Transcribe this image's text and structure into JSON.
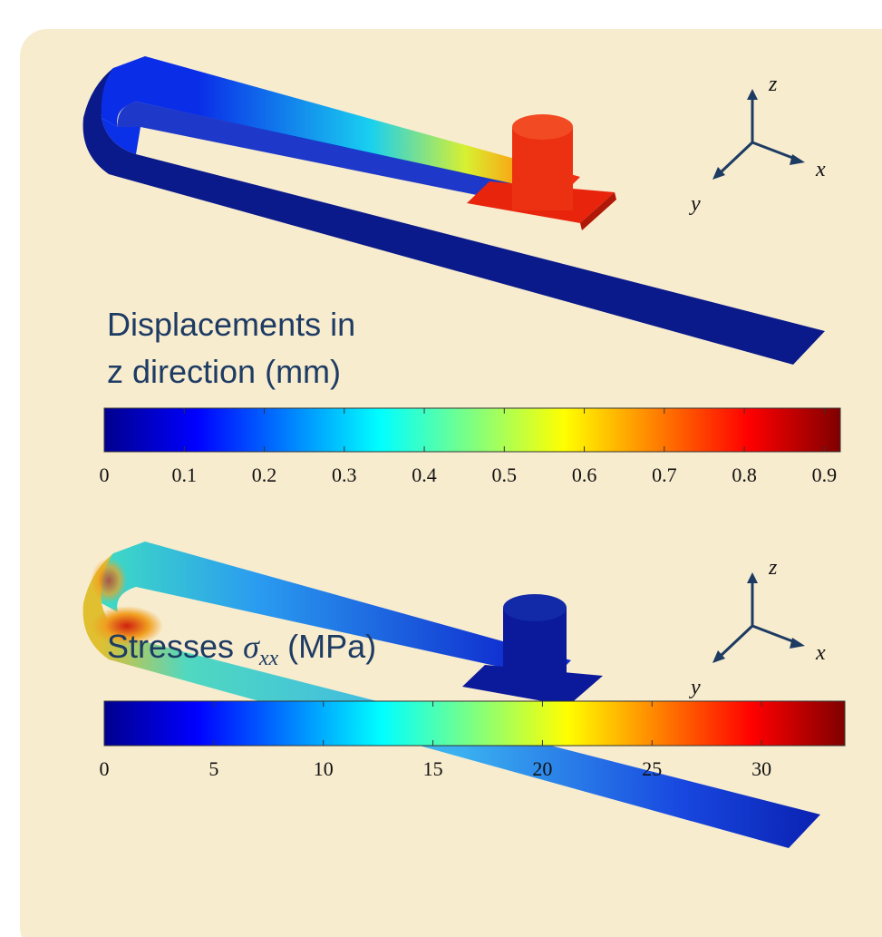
{
  "panels": [
    {
      "title_lines": [
        "Displacements in",
        "z direction (mm)"
      ],
      "colorbar": {
        "range": [
          0,
          0.92
        ],
        "ticks": [
          0,
          0.1,
          0.2,
          0.3,
          0.4,
          0.5,
          0.6,
          0.7,
          0.8,
          0.9
        ]
      },
      "axes": {
        "z": "z",
        "x": "x",
        "y": "y"
      }
    },
    {
      "title": {
        "prefix": "Stresses",
        "symbol": "σ",
        "subscript": "xx",
        "suffix": "(MPa)"
      },
      "colorbar": {
        "range": [
          0,
          33.8
        ],
        "ticks": [
          0,
          5,
          10,
          15,
          20,
          25,
          30
        ]
      },
      "axes": {
        "z": "z",
        "x": "x",
        "y": "y"
      }
    }
  ]
}
